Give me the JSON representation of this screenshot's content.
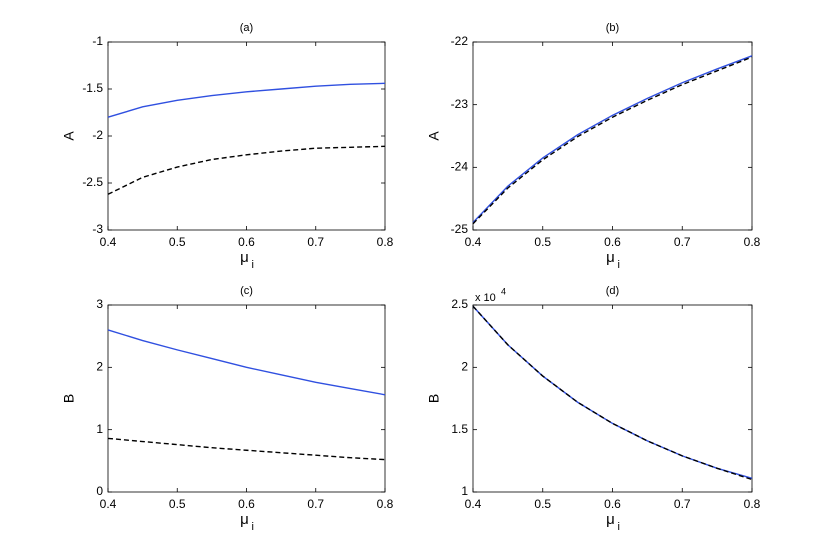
{
  "chart_data": [
    {
      "type": "line",
      "title": "(a)",
      "xlabel": "μ",
      "xlabel_sub": "i",
      "ylabel": "A",
      "x": [
        0.4,
        0.45,
        0.5,
        0.55,
        0.6,
        0.65,
        0.7,
        0.75,
        0.8
      ],
      "series": [
        {
          "color": "#3050e0",
          "dash": false,
          "values": [
            -1.8,
            -1.69,
            -1.62,
            -1.57,
            -1.53,
            -1.5,
            -1.47,
            -1.45,
            -1.44
          ]
        },
        {
          "color": "#000000",
          "dash": true,
          "values": [
            -2.62,
            -2.44,
            -2.33,
            -2.25,
            -2.2,
            -2.16,
            -2.13,
            -2.12,
            -2.11
          ]
        }
      ],
      "xlim": [
        0.4,
        0.8
      ],
      "xticks": [
        0.4,
        0.5,
        0.6,
        0.7,
        0.8
      ],
      "ylim": [
        -3,
        -1
      ],
      "yticks": [
        -3,
        -2.5,
        -2,
        -1.5,
        -1
      ],
      "grid": false
    },
    {
      "type": "line",
      "title": "(b)",
      "xlabel": "μ",
      "xlabel_sub": "i",
      "ylabel": "A",
      "x": [
        0.4,
        0.45,
        0.5,
        0.55,
        0.6,
        0.65,
        0.7,
        0.75,
        0.8
      ],
      "series": [
        {
          "color": "#3050e0",
          "dash": false,
          "values": [
            -24.88,
            -24.3,
            -23.85,
            -23.48,
            -23.17,
            -22.9,
            -22.65,
            -22.43,
            -22.22
          ]
        },
        {
          "color": "#000000",
          "dash": true,
          "values": [
            -24.9,
            -24.33,
            -23.88,
            -23.51,
            -23.2,
            -22.93,
            -22.68,
            -22.46,
            -22.24
          ]
        }
      ],
      "xlim": [
        0.4,
        0.8
      ],
      "xticks": [
        0.4,
        0.5,
        0.6,
        0.7,
        0.8
      ],
      "ylim": [
        -25,
        -22
      ],
      "yticks": [
        -25,
        -24,
        -23,
        -22
      ],
      "grid": false
    },
    {
      "type": "line",
      "title": "(c)",
      "xlabel": "μ",
      "xlabel_sub": "i",
      "ylabel": "B",
      "x": [
        0.4,
        0.45,
        0.5,
        0.55,
        0.6,
        0.65,
        0.7,
        0.75,
        0.8
      ],
      "series": [
        {
          "color": "#3050e0",
          "dash": false,
          "values": [
            2.6,
            2.43,
            2.28,
            2.14,
            2.0,
            1.88,
            1.76,
            1.66,
            1.56
          ]
        },
        {
          "color": "#000000",
          "dash": true,
          "values": [
            0.86,
            0.81,
            0.76,
            0.71,
            0.67,
            0.63,
            0.59,
            0.55,
            0.52
          ]
        }
      ],
      "xlim": [
        0.4,
        0.8
      ],
      "xticks": [
        0.4,
        0.5,
        0.6,
        0.7,
        0.8
      ],
      "ylim": [
        0,
        3
      ],
      "yticks": [
        0,
        1,
        2,
        3
      ],
      "grid": false
    },
    {
      "type": "line",
      "title": "(d)",
      "xlabel": "μ",
      "xlabel_sub": "i",
      "ylabel": "B",
      "y_offset_text": "x 10",
      "y_offset_exponent": "4",
      "x": [
        0.4,
        0.45,
        0.5,
        0.55,
        0.6,
        0.65,
        0.7,
        0.75,
        0.8
      ],
      "series": [
        {
          "color": "#3050e0",
          "dash": false,
          "values": [
            2.49,
            2.18,
            1.93,
            1.72,
            1.55,
            1.41,
            1.29,
            1.19,
            1.11
          ]
        },
        {
          "color": "#000000",
          "dash": true,
          "values": [
            2.49,
            2.18,
            1.93,
            1.72,
            1.55,
            1.41,
            1.29,
            1.19,
            1.1
          ]
        }
      ],
      "xlim": [
        0.4,
        0.8
      ],
      "xticks": [
        0.4,
        0.5,
        0.6,
        0.7,
        0.8
      ],
      "ylim": [
        1,
        2.5
      ],
      "yticks": [
        1,
        1.5,
        2,
        2.5
      ],
      "grid": false
    }
  ]
}
